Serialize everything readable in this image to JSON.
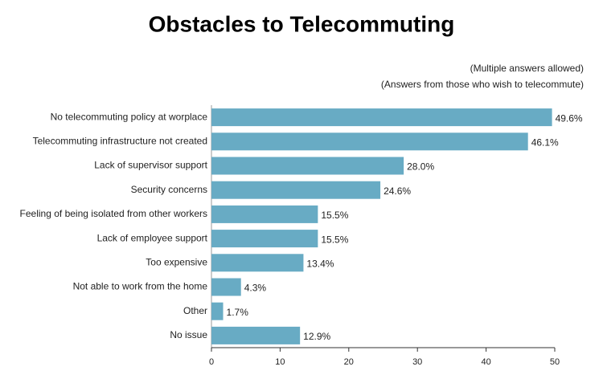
{
  "chart_data": {
    "type": "bar",
    "orientation": "horizontal",
    "title": "Obstacles to Telecommuting",
    "subtitles": [
      "(Multiple answers allowed)",
      "(Answers from those who wish to telecommute)"
    ],
    "categories": [
      "No telecommuting policy at worplace",
      "Telecommuting infrastructure not created",
      "Lack of supervisor support",
      "Security concerns",
      "Feeling of being isolated from other workers",
      "Lack of employee support",
      "Too expensive",
      "Not able to work from the home",
      "Other",
      "No issue"
    ],
    "values": [
      49.6,
      46.1,
      28.0,
      24.6,
      15.5,
      15.5,
      13.4,
      4.3,
      1.7,
      12.9
    ],
    "value_labels": [
      "49.6%",
      "46.1%",
      "28.0%",
      "24.6%",
      "15.5%",
      "15.5%",
      "13.4%",
      "4.3%",
      "1.7%",
      "12.9%"
    ],
    "color": "#68abc4",
    "xlim": [
      0,
      50
    ],
    "xticks": [
      0,
      10,
      20,
      30,
      40,
      50
    ]
  }
}
